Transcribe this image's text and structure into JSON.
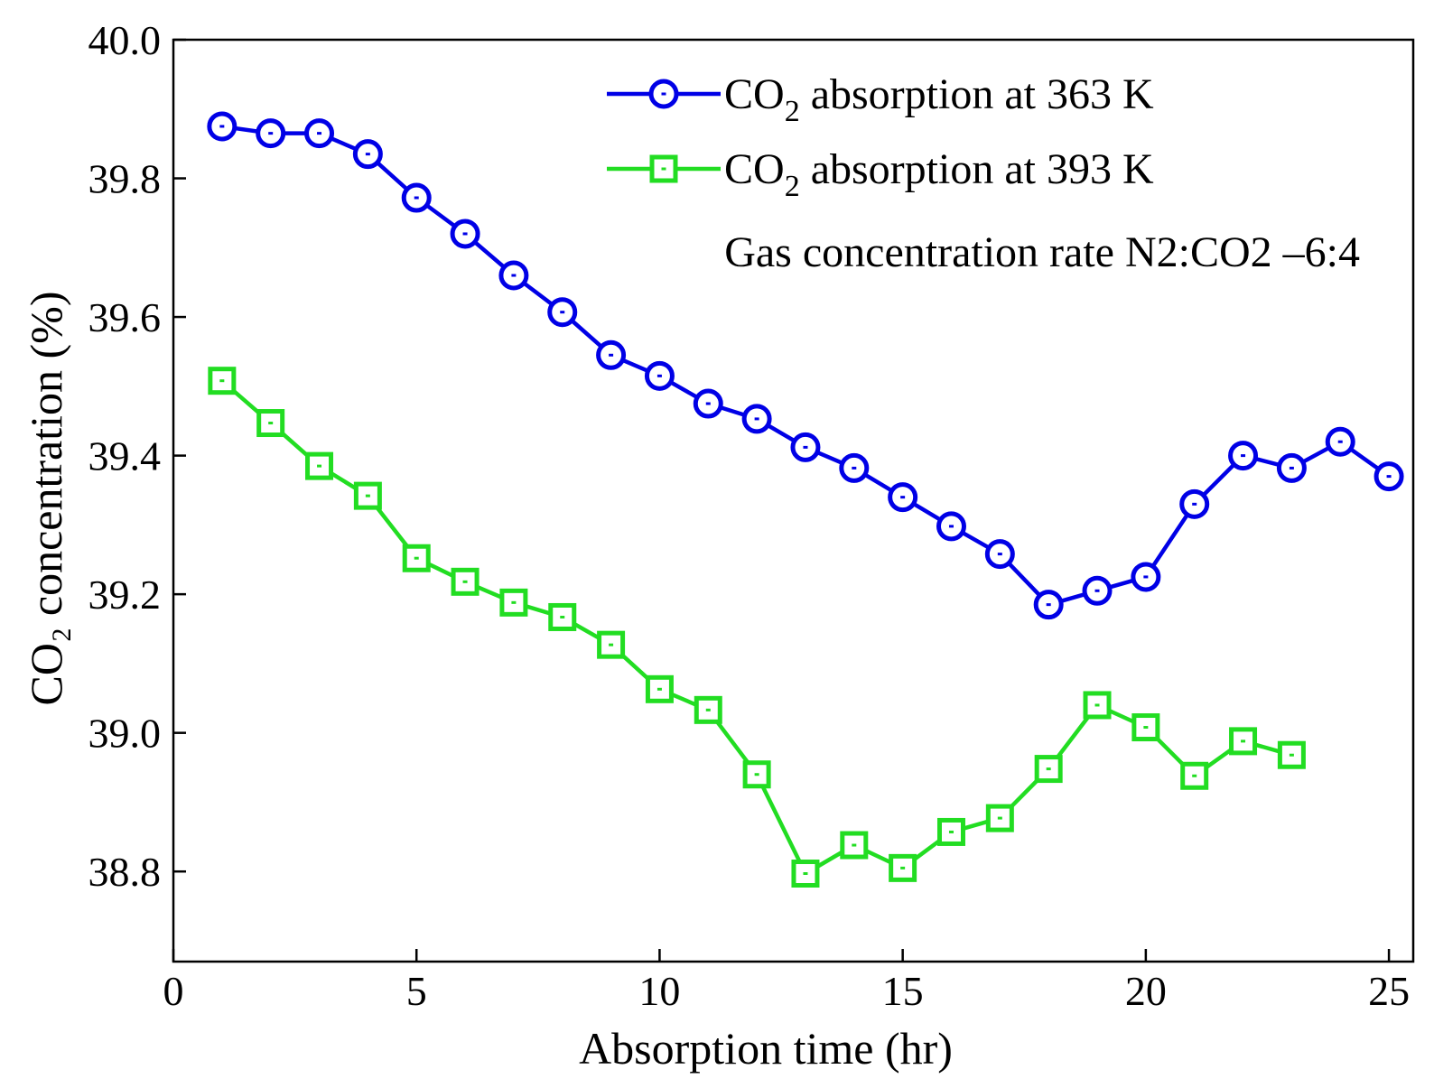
{
  "chart_data": {
    "type": "line",
    "title": "",
    "xlabel": "Absorption time (hr)",
    "ylabel": "CO₂ concentration (%)",
    "xlim": [
      0,
      25.5
    ],
    "ylim": [
      38.67,
      40.0
    ],
    "x_ticks": [
      0,
      5,
      10,
      15,
      20,
      25
    ],
    "x_tick_labels": [
      "0",
      "5",
      "10",
      "15",
      "20",
      "25"
    ],
    "y_ticks": [
      38.8,
      39.0,
      39.2,
      39.4,
      39.6,
      39.8,
      40.0
    ],
    "y_tick_labels": [
      "38.8",
      "39.0",
      "39.2",
      "39.4",
      "39.6",
      "39.8",
      "40.0"
    ],
    "grid": false,
    "legend_position": "top-right",
    "series": [
      {
        "name": "CO2 absorption at 363 K",
        "label_main": "CO",
        "label_sub": "2",
        "label_rest": " absorption at 363 K",
        "color": "#0000e6",
        "marker": "circle",
        "x": [
          1,
          2,
          3,
          4,
          5,
          6,
          7,
          8,
          9,
          10,
          11,
          12,
          13,
          14,
          15,
          16,
          17,
          18,
          19,
          20,
          21,
          22,
          23,
          24,
          25
        ],
        "values": [
          39.875,
          39.865,
          39.865,
          39.835,
          39.772,
          39.72,
          39.66,
          39.607,
          39.545,
          39.515,
          39.475,
          39.453,
          39.412,
          39.382,
          39.34,
          39.298,
          39.258,
          39.185,
          39.205,
          39.225,
          39.33,
          39.4,
          39.382,
          39.42,
          39.37
        ]
      },
      {
        "name": "CO2 absorption at 393 K",
        "label_main": "CO",
        "label_sub": "2",
        "label_rest": " absorption at 393 K",
        "color": "#22dd22",
        "marker": "square",
        "x": [
          1,
          2,
          3,
          4,
          5,
          6,
          7,
          8,
          9,
          10,
          11,
          12,
          13,
          14,
          15,
          16,
          17,
          18,
          19,
          20,
          21,
          22,
          23
        ],
        "values": [
          39.508,
          39.447,
          39.385,
          39.342,
          39.252,
          39.218,
          39.188,
          39.167,
          39.127,
          39.063,
          39.033,
          38.94,
          38.797,
          38.838,
          38.805,
          38.857,
          38.877,
          38.948,
          39.04,
          39.008,
          38.938,
          38.988,
          38.968
        ]
      }
    ],
    "annotation": "Gas concentration rate N2:CO2 –6:4"
  }
}
